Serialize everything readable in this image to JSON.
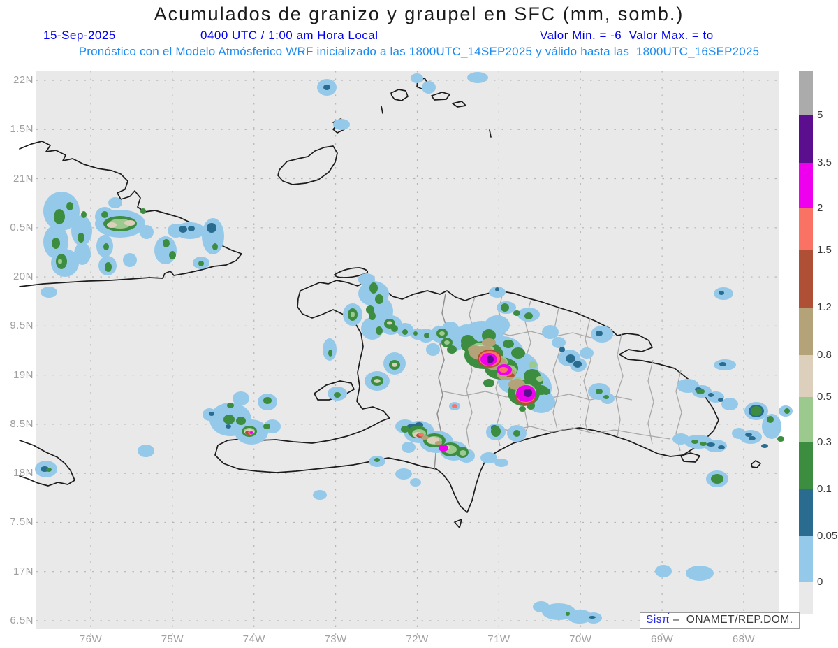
{
  "title": "Acumulados de granizo y graupel en SFC (mm, somb.)",
  "header": {
    "date": "15-Sep-2025",
    "time": "0400 UTC / 1:00 am Hora Local",
    "minmax": "Valor Min. = -6  Valor Max. = to",
    "model_line": "Pronóstico con el Modelo Atmósferico WRF inicializado a las 1800UTC_14SEP2025 y válido hasta las  1800UTC_16SEP2025"
  },
  "axes": {
    "lat_labels": [
      "22N",
      "1.5N",
      "21N",
      "0.5N",
      "20N",
      "9.5N",
      "19N",
      "8.5N",
      "18N",
      "7.5N",
      "17N",
      "6.5N"
    ],
    "lon_labels": [
      "76W",
      "75W",
      "74W",
      "73W",
      "72W",
      "71W",
      "70W",
      "69W",
      "68W"
    ]
  },
  "colorbar": {
    "units": "mm",
    "tick_labels": [
      "5",
      "3.5",
      "2",
      "1.5",
      "1.2",
      "0.8",
      "0.5",
      "0.3",
      "0.1",
      "0.05",
      "0"
    ],
    "segment_colors": [
      "#ABABAB",
      "#5B0E8E",
      "#EE00EE",
      "#F97264",
      "#AF4F36",
      "#B4A379",
      "#DCD0BC",
      "#9CC98E",
      "#3C8D40",
      "#2A6C8F",
      "#95C9EA",
      "#E9E9E9"
    ]
  },
  "watermark": {
    "brand": "Sisπ́",
    "rest": " –  ONAMET/REP.DOM."
  },
  "palette": {
    "light_blue": "#95C9EA",
    "teal_blue": "#2A6C8F",
    "green": "#3C8D40",
    "light_green": "#9CC98E",
    "tan_light": "#DCD0BC",
    "tan_dark": "#B4A379",
    "brick": "#AF4F36",
    "salmon": "#F97264",
    "magenta": "#EE00EE",
    "purple": "#5B0E8E",
    "map_background": "#E9E9E9",
    "grid_line": "#B5B5B5",
    "coastline": "#1C1C1C",
    "province_line": "#A8A8A8",
    "header_blue": "#0000EE",
    "header_light_blue": "#1E8BEE",
    "axis_label_gray": "#A0A0A0",
    "watermark_blue": "#2626EE"
  }
}
